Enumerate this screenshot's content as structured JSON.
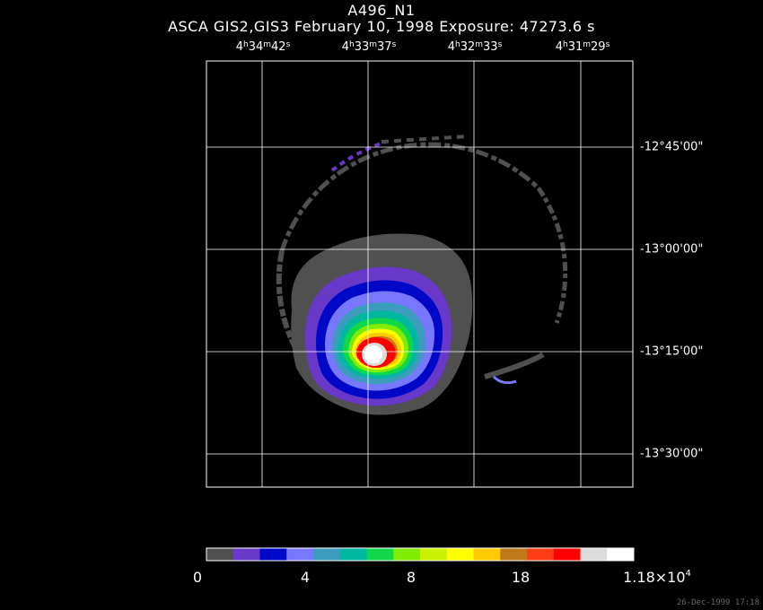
{
  "header": {
    "title": "A496_N1",
    "subtitle": "ASCA GIS2,GIS3 February 10, 1998 Exposure: 47273.6 s"
  },
  "ra_labels": [
    {
      "h": "4",
      "m": "34",
      "s": "42"
    },
    {
      "h": "4",
      "m": "33",
      "s": "37"
    },
    {
      "h": "4",
      "m": "32",
      "s": "33"
    },
    {
      "h": "4",
      "m": "31",
      "s": "29"
    }
  ],
  "dec_labels": [
    "-12°45'00\"",
    "-13°00'00\"",
    "-13°15'00\"",
    "-13°30'00\""
  ],
  "colorbar": {
    "colors": [
      "#505050",
      "#6838c8",
      "#0008c8",
      "#7878ff",
      "#3c9cbc",
      "#00b8a0",
      "#10d848",
      "#80ec00",
      "#c8f000",
      "#ffff00",
      "#ffc800",
      "#c07818",
      "#ff3c14",
      "#ff0000",
      "#dcdcdc",
      "#ffffff"
    ],
    "labels": [
      {
        "text": "0"
      },
      {
        "text": "4"
      },
      {
        "text": "8"
      },
      {
        "text": "18"
      },
      {
        "text": "1.18×10",
        "exp": "4"
      }
    ]
  },
  "timestamp": "26-Dec-1999 17:18"
}
